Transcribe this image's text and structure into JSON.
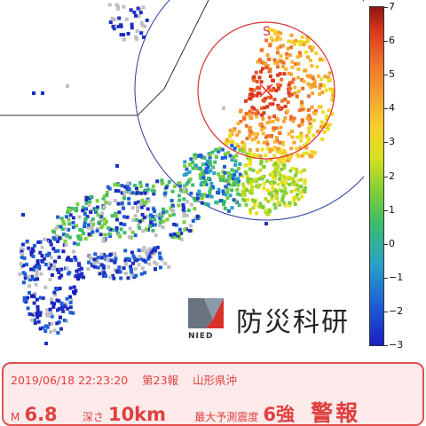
{
  "colors": {
    "alert_text": "#e04040",
    "alert_border": "#e05050",
    "alert_bg": "#fdeaea",
    "circle_red": "#d83030",
    "circle_blue": "#2a3aa0",
    "epicenter": "#e03030"
  },
  "map": {
    "epicenter_label": "S",
    "colorbar_ticks": [
      "7",
      "6",
      "5",
      "4",
      "3",
      "2",
      "1",
      "0",
      "−1",
      "−2",
      "−3"
    ]
  },
  "logo": {
    "name": "防災科研",
    "abbr": "NIED"
  },
  "alert": {
    "datetime": "2019/06/18 22:23:20",
    "report": "第23報",
    "region": "山形県沖",
    "magnitude_label": "M",
    "magnitude_value": "6.8",
    "depth_label": "深さ",
    "depth_value": "10km",
    "intensity_label": "最大予測震度",
    "intensity_value": "6強",
    "warning": "警報"
  }
}
